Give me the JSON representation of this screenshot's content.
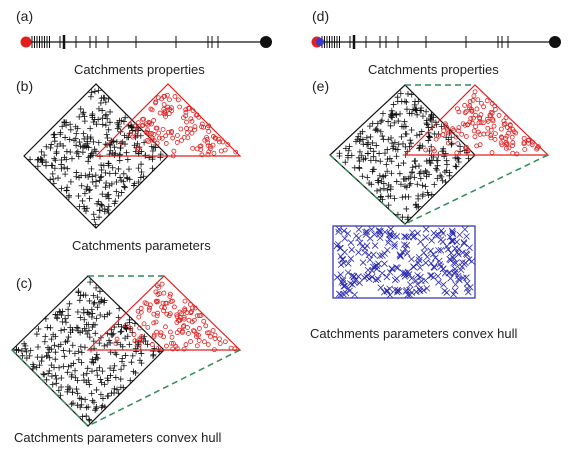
{
  "panels": {
    "a": {
      "label": "(a)",
      "caption": "Catchments properties"
    },
    "b": {
      "label": "(b)",
      "caption": "Catchments parameters"
    },
    "c": {
      "label": "(c)",
      "caption": "Catchments parameters convex hull"
    },
    "d": {
      "label": "(d)",
      "caption": "Catchments properties"
    },
    "e": {
      "label": "(e)",
      "caption": "Catchments parameters convex hull"
    }
  },
  "colors": {
    "black_markers": "#111111",
    "red_markers": "#e02020",
    "blue_markers": "#2a2ab0",
    "hull_dashed": "#2e8b57",
    "red_dot": "#e02020",
    "blue_dot": "#3a3ad0"
  },
  "markers": {
    "plus": "plus-marker",
    "circle": "circle-marker",
    "cross": "x-marker"
  }
}
